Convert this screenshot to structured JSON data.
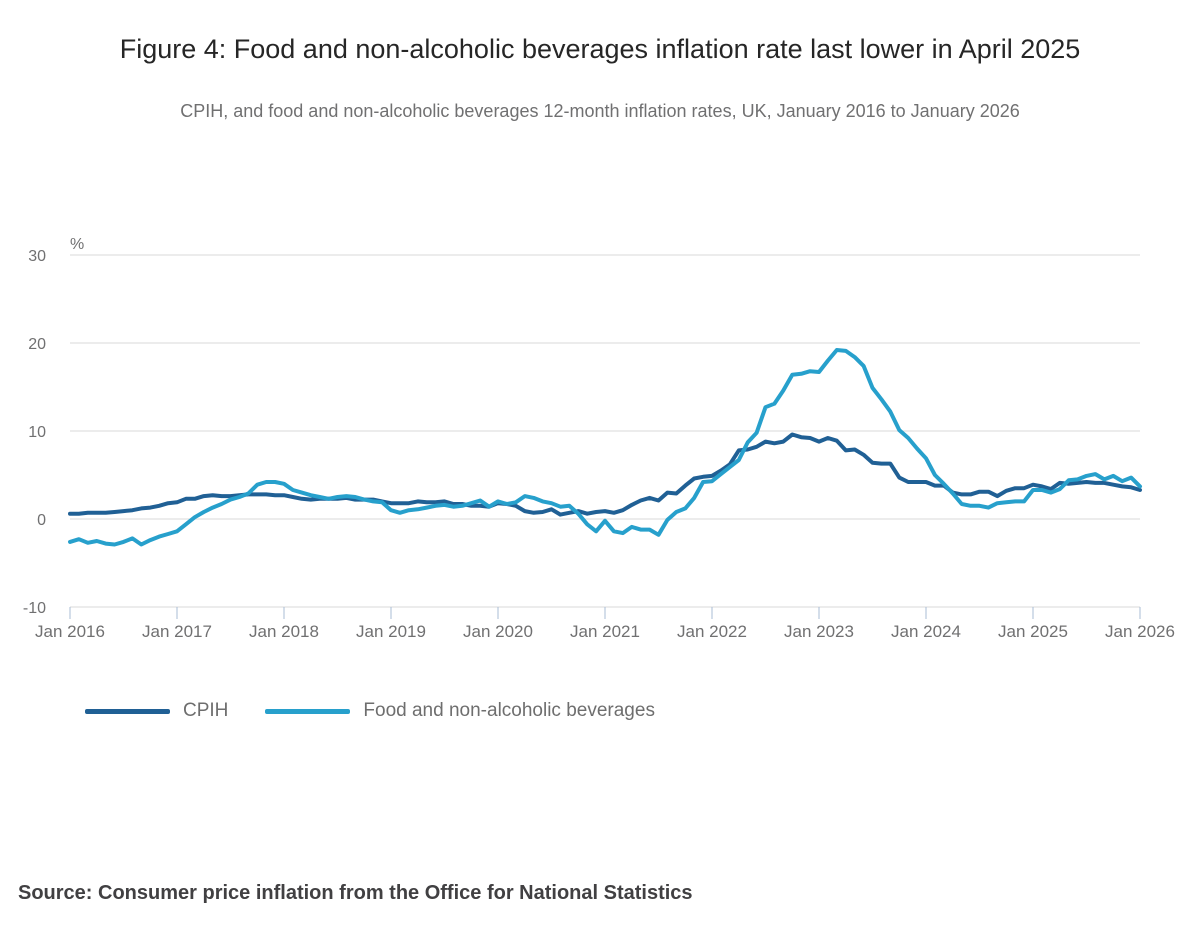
{
  "figure": {
    "title": "Figure 4: Food and non-alcoholic beverages inflation rate last lower in April 2025",
    "subtitle": "CPIH, and food and non-alcoholic beverages 12-month inflation rates, UK, January 2016 to January 2026",
    "source": "Source: Consumer price inflation from the Office for National Statistics"
  },
  "legend": {
    "items": [
      {
        "label": "CPIH",
        "color": "#206095"
      },
      {
        "label": "Food and non-alcoholic beverages",
        "color": "#27A0CC"
      }
    ]
  },
  "chart_data": {
    "type": "line",
    "title": "Figure 4: Food and non-alcoholic beverages inflation rate last lower in April 2025",
    "subtitle": "CPIH, and food and non-alcoholic beverages 12-month inflation rates, UK, January 2016 to January 2026",
    "unit_label": "%",
    "x_tick_labels": [
      "Jan 2016",
      "Jan 2017",
      "Jan 2018",
      "Jan 2019",
      "Jan 2020",
      "Jan 2021",
      "Jan 2022",
      "Jan 2023",
      "Jan 2024",
      "Jan 2025",
      "Jan 2026"
    ],
    "y_ticks": [
      30,
      20,
      10,
      0,
      -10
    ],
    "ylim": [
      -10,
      33
    ],
    "grid": "horizontal",
    "legend_position": "bottom-left",
    "x_frequency": "monthly",
    "x_range": "January 2016 to January 2026",
    "series": [
      {
        "name": "CPIH",
        "color": "#206095",
        "values": [
          0.6,
          0.6,
          0.7,
          0.7,
          0.7,
          0.8,
          0.9,
          1.0,
          1.2,
          1.3,
          1.5,
          1.8,
          1.9,
          2.3,
          2.3,
          2.6,
          2.7,
          2.6,
          2.6,
          2.7,
          2.8,
          2.8,
          2.8,
          2.7,
          2.7,
          2.5,
          2.3,
          2.2,
          2.3,
          2.3,
          2.3,
          2.4,
          2.2,
          2.2,
          2.2,
          2.0,
          1.8,
          1.8,
          1.8,
          2.0,
          1.9,
          1.9,
          2.0,
          1.7,
          1.7,
          1.5,
          1.5,
          1.4,
          1.8,
          1.7,
          1.5,
          0.9,
          0.7,
          0.8,
          1.1,
          0.5,
          0.7,
          0.9,
          0.6,
          0.8,
          0.9,
          0.7,
          1.0,
          1.6,
          2.1,
          2.4,
          2.1,
          3.0,
          2.9,
          3.8,
          4.6,
          4.8,
          4.9,
          5.5,
          6.2,
          7.8,
          7.9,
          8.2,
          8.8,
          8.6,
          8.8,
          9.6,
          9.3,
          9.2,
          8.8,
          9.2,
          8.9,
          7.8,
          7.9,
          7.3,
          6.4,
          6.3,
          6.3,
          4.7,
          4.2,
          4.2,
          4.2,
          3.8,
          3.8,
          3.0,
          2.8,
          2.8,
          3.1,
          3.1,
          2.6,
          3.2,
          3.5,
          3.5,
          3.9,
          3.7,
          3.4,
          4.1,
          4.0,
          4.1,
          4.2,
          4.1,
          4.1,
          3.9,
          3.7,
          3.6,
          3.3
        ]
      },
      {
        "name": "Food and non-alcoholic beverages",
        "color": "#27A0CC",
        "values": [
          -2.6,
          -2.3,
          -2.7,
          -2.5,
          -2.8,
          -2.9,
          -2.6,
          -2.2,
          -2.9,
          -2.4,
          -2.0,
          -1.7,
          -1.4,
          -0.6,
          0.2,
          0.8,
          1.3,
          1.7,
          2.2,
          2.5,
          2.9,
          3.9,
          4.2,
          4.2,
          4.0,
          3.3,
          3.0,
          2.7,
          2.5,
          2.3,
          2.5,
          2.6,
          2.5,
          2.2,
          2.0,
          1.9,
          1.0,
          0.7,
          1.0,
          1.1,
          1.3,
          1.5,
          1.6,
          1.4,
          1.5,
          1.8,
          2.1,
          1.4,
          2.0,
          1.7,
          1.9,
          2.6,
          2.4,
          2.0,
          1.8,
          1.4,
          1.5,
          0.6,
          -0.6,
          -1.4,
          -0.2,
          -1.4,
          -1.6,
          -0.9,
          -1.2,
          -1.2,
          -1.8,
          -0.1,
          0.8,
          1.2,
          2.4,
          4.2,
          4.3,
          5.1,
          5.9,
          6.7,
          8.7,
          9.8,
          12.7,
          13.1,
          14.6,
          16.4,
          16.5,
          16.8,
          16.7,
          18.0,
          19.2,
          19.1,
          18.4,
          17.4,
          14.9,
          13.6,
          12.2,
          10.1,
          9.2,
          8.0,
          6.9,
          5.0,
          4.0,
          2.9,
          1.7,
          1.5,
          1.5,
          1.3,
          1.8,
          1.9,
          2.0,
          2.0,
          3.3,
          3.3,
          3.0,
          3.4,
          4.4,
          4.5,
          4.9,
          5.1,
          4.5,
          4.9,
          4.3,
          4.7,
          3.7
        ]
      }
    ]
  },
  "plot_colors": {
    "gridline": "#d9d9d9",
    "tick_mark": "#a8bdd6",
    "axis_text": "#707071"
  }
}
